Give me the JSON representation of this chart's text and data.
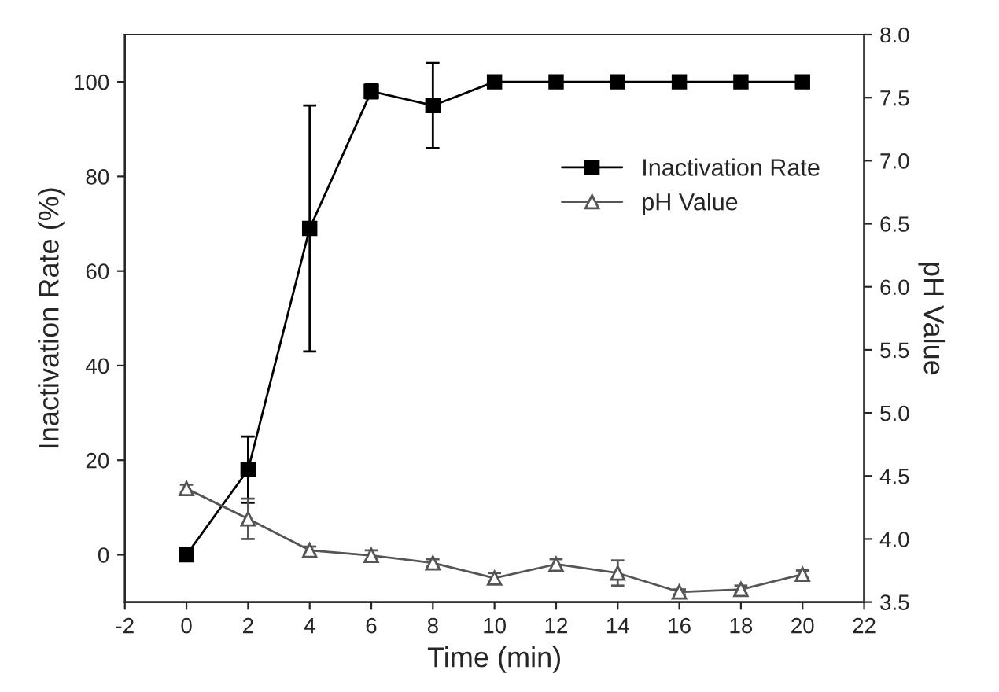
{
  "chart_data": {
    "type": "line",
    "xlabel": "Time (min)",
    "ylabel": "Inactivation Rate (%)",
    "y2label": "pH Value",
    "x": [
      0,
      2,
      4,
      6,
      8,
      10,
      12,
      14,
      16,
      18,
      20
    ],
    "series": [
      {
        "name": "Inactivation Rate",
        "color": "#000000",
        "marker": "square",
        "values": [
          0,
          18,
          69,
          98,
          95,
          100,
          100,
          100,
          100,
          100,
          100
        ],
        "errors": [
          null,
          7,
          26,
          1.5,
          9,
          null,
          null,
          null,
          null,
          null,
          null
        ]
      },
      {
        "name": "pH Value",
        "color": "#555555",
        "marker": "triangle",
        "axis": "y2",
        "values": [
          4.4,
          4.16,
          3.91,
          3.87,
          3.81,
          3.69,
          3.8,
          3.73,
          3.58,
          3.6,
          3.72
        ],
        "errors": [
          0.03,
          0.16,
          0.03,
          0.04,
          0.03,
          0.04,
          0.04,
          0.1,
          0.02,
          0.03,
          0.03
        ]
      }
    ],
    "xlim": [
      -2,
      22
    ],
    "xticks": [
      -2,
      0,
      2,
      4,
      6,
      8,
      10,
      12,
      14,
      16,
      18,
      20,
      22
    ],
    "ylim": [
      -10,
      110
    ],
    "yticks": [
      0,
      20,
      40,
      60,
      80,
      100
    ],
    "y2lim": [
      3.5,
      8.0
    ],
    "y2ticks": [
      3.5,
      {
        "value": 4,
        "label": "4.0"
      },
      4.5,
      {
        "value": 5,
        "label": "5.0"
      },
      5.5,
      {
        "value": 6,
        "label": "6.0"
      },
      6.5,
      {
        "value": 7,
        "label": "7.0"
      },
      7.5,
      {
        "value": 8,
        "label": "8.0"
      }
    ],
    "grid": false,
    "legend": "top right",
    "line_style": "solid"
  }
}
